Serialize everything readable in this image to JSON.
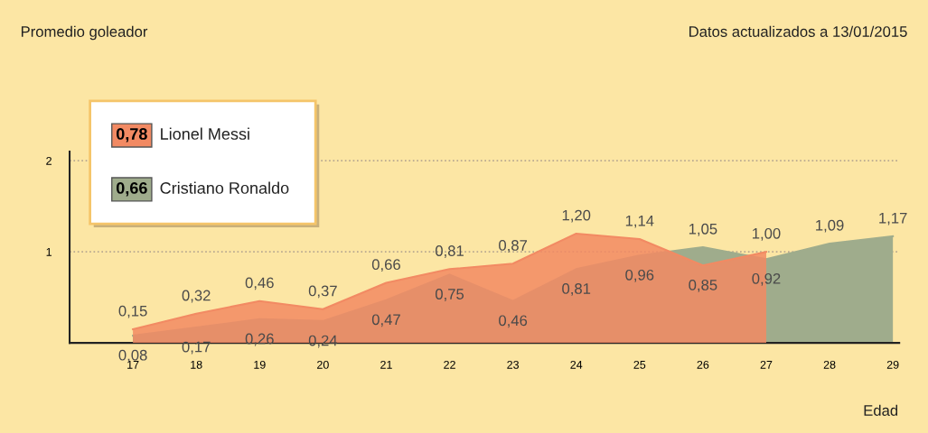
{
  "chart_data": {
    "type": "area",
    "xlabel": "Edad",
    "subtitle": "Datos actualizados a 13/01/2015",
    "annotations": [
      "0,78",
      "0,66",
      "Promedio goleador"
    ],
    "x": [
      17,
      18,
      19,
      20,
      21,
      22,
      23,
      24,
      25,
      26,
      27,
      28,
      29
    ],
    "series": [
      {
        "name": "Cristiano Ronaldo",
        "color": "#9fac8c",
        "values": [
          0.08,
          0.17,
          0.26,
          0.24,
          0.47,
          0.75,
          0.46,
          0.81,
          0.96,
          1.05,
          0.92,
          1.09,
          1.17
        ],
        "value_labels": [
          "0,08",
          "0,17",
          "0,26",
          "0,24",
          "0,47",
          "0,75",
          "0,46",
          "0,81",
          "0,96",
          "1,05",
          "0,92",
          "1,09",
          "1,17"
        ]
      },
      {
        "name": "Lionel Messi",
        "color": "#f28a63",
        "values": [
          0.15,
          0.32,
          0.46,
          0.37,
          0.66,
          0.81,
          0.87,
          1.2,
          1.14,
          0.85,
          1.0,
          null,
          null
        ],
        "value_labels": [
          "0,15",
          "0,32",
          "0,46",
          "0,37",
          "0,66",
          "0,81",
          "0,87",
          "1,20",
          "1,14",
          "0,85",
          "1,00",
          null,
          null
        ]
      }
    ],
    "xlim": [
      16,
      29.1
    ],
    "xticks": [
      17,
      18,
      19,
      20,
      21,
      22,
      23,
      24,
      25,
      26,
      27,
      28,
      29
    ],
    "ylim": [
      0,
      2.1
    ],
    "yticks": [
      1,
      2
    ],
    "grid": "y",
    "legend": "top left"
  }
}
